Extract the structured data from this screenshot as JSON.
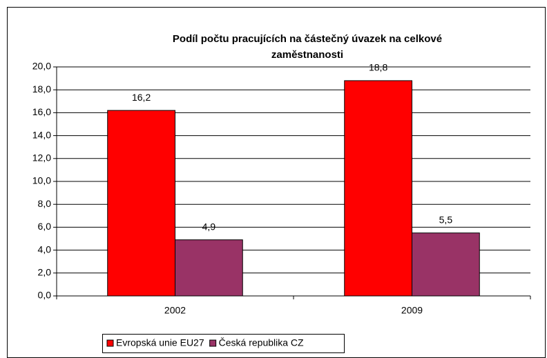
{
  "chart_data": {
    "type": "bar",
    "title": [
      "Podíl počtu pracujících na částečný úvazek na celkové",
      "zaměstnanosti"
    ],
    "categories": [
      "2002",
      "2009"
    ],
    "series": [
      {
        "name": "Evropská unie EU27",
        "color": "#ff0000",
        "values": [
          16.2,
          18.8
        ],
        "value_labels": [
          "16,2",
          "18,8"
        ]
      },
      {
        "name": "Česká republika CZ",
        "color": "#993366",
        "values": [
          4.9,
          5.5
        ],
        "value_labels": [
          "4,9",
          "5,5"
        ]
      }
    ],
    "ylim": [
      0,
      20
    ],
    "yticks": [
      {
        "value": 0,
        "label": "0,0"
      },
      {
        "value": 2,
        "label": "2,0"
      },
      {
        "value": 4,
        "label": "4,0"
      },
      {
        "value": 6,
        "label": "6,0"
      },
      {
        "value": 8,
        "label": "8,0"
      },
      {
        "value": 10,
        "label": "10,0"
      },
      {
        "value": 12,
        "label": "12,0"
      },
      {
        "value": 14,
        "label": "14,0"
      },
      {
        "value": 16,
        "label": "16,0"
      },
      {
        "value": 18,
        "label": "18,0"
      },
      {
        "value": 20,
        "label": "20,0"
      }
    ],
    "grid": true
  }
}
